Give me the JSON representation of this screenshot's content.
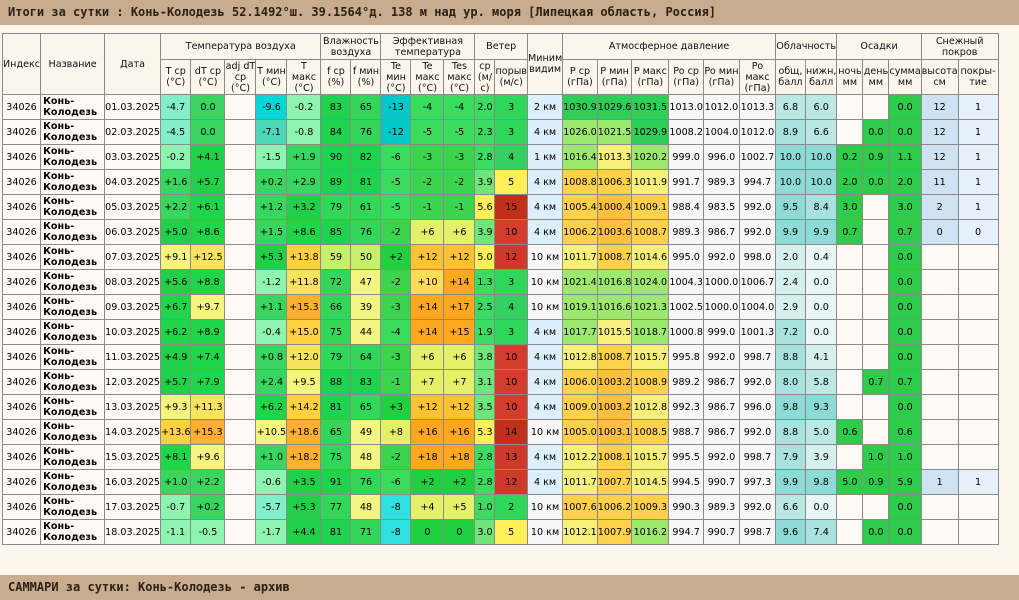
{
  "header": {
    "title": "Итоги за сутки : Конь-Колодезь 52.1492°ш. 39.1564°д. 138 м над ур. моря [Липецкая область, Россия]"
  },
  "footer": {
    "title": "САММАРИ за сутки: Конь-Колодезь - архив"
  },
  "table": {
    "group_headers": {
      "index": "Индекс",
      "name": "Название",
      "date": "Дата",
      "temperature": "Температура воздуха",
      "humidity": "Влажность воздуха",
      "effective": "Эффективная температура",
      "wind": "Ветер",
      "visibility": "Миним видим",
      "pressure": "Атмосферное давление",
      "cloud": "Облачность",
      "precip": "Осадки",
      "snow": "Снежный покров"
    },
    "sub_headers": [
      "T ср (°C)",
      "dT ср (°C)",
      "adj dT ср (°C)",
      "T мин (°C)",
      "T макс (°C)",
      "f ср (%)",
      "f мин (%)",
      "Te мин (°C)",
      "Te макс (°C)",
      "Tes макс (°C)",
      "ср (м/с)",
      "порыв (м/с)",
      "P ср (гПа)",
      "P мин (гПа)",
      "P макс (гПа)",
      "Po ср (гПа)",
      "Po мин (гПа)",
      "Po макс (гПа)",
      "общ, балл",
      "нижн, балл",
      "ночь мм",
      "день мм",
      "сумма мм",
      "высота см",
      "покры- тие"
    ],
    "rows": [
      {
        "index": "34026",
        "name": "Конь-Колодезь",
        "date": "01.03.2025",
        "tavg": "-4.7",
        "dt": "0.0",
        "adj": "",
        "tmin": "-9.6",
        "tmax": "-0.2",
        "fsr": "83",
        "fmin": "65",
        "temin": "-13",
        "temax": "-4",
        "tesmax": "-4",
        "wavg": "2.0",
        "gust": "3",
        "vis": "2 км",
        "psr": "1030.9",
        "pmin": "1029.6",
        "pmax": "1031.5",
        "posr": "1013.0",
        "pomin": "1012.0",
        "pomax": "1013.3",
        "cl_tot": "6.8",
        "cl_low": "6.0",
        "pr_n": "",
        "pr_d": "",
        "pr_s": "0.0",
        "sn_h": "12",
        "sn_c": "1"
      },
      {
        "index": "34026",
        "name": "Конь-Колодезь",
        "date": "02.03.2025",
        "tavg": "-4.5",
        "dt": "0.0",
        "adj": "",
        "tmin": "-7.1",
        "tmax": "-0.8",
        "fsr": "84",
        "fmin": "76",
        "temin": "-12",
        "temax": "-5",
        "tesmax": "-5",
        "wavg": "2.3",
        "gust": "3",
        "vis": "4 км",
        "psr": "1026.0",
        "pmin": "1021.5",
        "pmax": "1029.9",
        "posr": "1008.2",
        "pomin": "1004.0",
        "pomax": "1012.0",
        "cl_tot": "8.9",
        "cl_low": "6.6",
        "pr_n": "",
        "pr_d": "0.0",
        "pr_s": "0.0",
        "sn_h": "12",
        "sn_c": "1"
      },
      {
        "index": "34026",
        "name": "Конь-Колодезь",
        "date": "03.03.2025",
        "tavg": "-0.2",
        "dt": "+4.1",
        "adj": "",
        "tmin": "-1.5",
        "tmax": "+1.9",
        "fsr": "90",
        "fmin": "82",
        "temin": "-6",
        "temax": "-3",
        "tesmax": "-3",
        "wavg": "2.8",
        "gust": "4",
        "vis": "1 км",
        "psr": "1016.4",
        "pmin": "1013.3",
        "pmax": "1020.2",
        "posr": "999.0",
        "pomin": "996.0",
        "pomax": "1002.7",
        "cl_tot": "10.0",
        "cl_low": "10.0",
        "pr_n": "0.2",
        "pr_d": "0.9",
        "pr_s": "1.1",
        "sn_h": "12",
        "sn_c": "1"
      },
      {
        "index": "34026",
        "name": "Конь-Колодезь",
        "date": "04.03.2025",
        "tavg": "+1.6",
        "dt": "+5.7",
        "adj": "",
        "tmin": "+0.2",
        "tmax": "+2.9",
        "fsr": "89",
        "fmin": "81",
        "temin": "-5",
        "temax": "-2",
        "tesmax": "-2",
        "wavg": "3.9",
        "gust": "5",
        "vis": "4 км",
        "psr": "1008.8",
        "pmin": "1006.3",
        "pmax": "1011.9",
        "posr": "991.7",
        "pomin": "989.3",
        "pomax": "994.7",
        "cl_tot": "10.0",
        "cl_low": "10.0",
        "pr_n": "2.0",
        "pr_d": "0.0",
        "pr_s": "2.0",
        "sn_h": "11",
        "sn_c": "1"
      },
      {
        "index": "34026",
        "name": "Конь-Колодезь",
        "date": "05.03.2025",
        "tavg": "+2.2",
        "dt": "+6.1",
        "adj": "",
        "tmin": "+1.2",
        "tmax": "+3.2",
        "fsr": "79",
        "fmin": "61",
        "temin": "-5",
        "temax": "-1",
        "tesmax": "-1",
        "wavg": "5.6",
        "gust": "15",
        "vis": "4 км",
        "psr": "1005.4",
        "pmin": "1000.4",
        "pmax": "1009.1",
        "posr": "988.4",
        "pomin": "983.5",
        "pomax": "992.0",
        "cl_tot": "9.5",
        "cl_low": "8.4",
        "pr_n": "3.0",
        "pr_d": "",
        "pr_s": "3.0",
        "sn_h": "2",
        "sn_c": "1"
      },
      {
        "index": "34026",
        "name": "Конь-Колодезь",
        "date": "06.03.2025",
        "tavg": "+5.0",
        "dt": "+8.6",
        "adj": "",
        "tmin": "+1.5",
        "tmax": "+8.6",
        "fsr": "85",
        "fmin": "76",
        "temin": "-2",
        "temax": "+6",
        "tesmax": "+6",
        "wavg": "3.9",
        "gust": "10",
        "vis": "4 км",
        "psr": "1006.2",
        "pmin": "1003.6",
        "pmax": "1008.7",
        "posr": "989.3",
        "pomin": "986.7",
        "pomax": "992.0",
        "cl_tot": "9.9",
        "cl_low": "9.9",
        "pr_n": "0.7",
        "pr_d": "",
        "pr_s": "0.7",
        "sn_h": "0",
        "sn_c": "0"
      },
      {
        "index": "34026",
        "name": "Конь-Колодезь",
        "date": "07.03.2025",
        "tavg": "+9.1",
        "dt": "+12.5",
        "adj": "",
        "tmin": "+5.3",
        "tmax": "+13.8",
        "fsr": "59",
        "fmin": "50",
        "temin": "+2",
        "temax": "+12",
        "tesmax": "+12",
        "wavg": "5.0",
        "gust": "12",
        "vis": "10 км",
        "psr": "1011.7",
        "pmin": "1008.7",
        "pmax": "1014.6",
        "posr": "995.0",
        "pomin": "992.0",
        "pomax": "998.0",
        "cl_tot": "2.0",
        "cl_low": "0.4",
        "pr_n": "",
        "pr_d": "",
        "pr_s": "0.0",
        "sn_h": "",
        "sn_c": ""
      },
      {
        "index": "34026",
        "name": "Конь-Колодезь",
        "date": "08.03.2025",
        "tavg": "+5.6",
        "dt": "+8.8",
        "adj": "",
        "tmin": "-1.2",
        "tmax": "+11.8",
        "fsr": "72",
        "fmin": "47",
        "temin": "-2",
        "temax": "+10",
        "tesmax": "+14",
        "wavg": "1.3",
        "gust": "3",
        "vis": "10 км",
        "psr": "1021.4",
        "pmin": "1016.8",
        "pmax": "1024.0",
        "posr": "1004.3",
        "pomin": "1000.0",
        "pomax": "1006.7",
        "cl_tot": "2.4",
        "cl_low": "0.0",
        "pr_n": "",
        "pr_d": "",
        "pr_s": "0.0",
        "sn_h": "",
        "sn_c": ""
      },
      {
        "index": "34026",
        "name": "Конь-Колодезь",
        "date": "09.03.2025",
        "tavg": "+6.7",
        "dt": "+9.7",
        "adj": "",
        "tmin": "+1.1",
        "tmax": "+15.3",
        "fsr": "66",
        "fmin": "39",
        "temin": "-3",
        "temax": "+14",
        "tesmax": "+17",
        "wavg": "2.5",
        "gust": "4",
        "vis": "10 км",
        "psr": "1019.1",
        "pmin": "1016.6",
        "pmax": "1021.3",
        "posr": "1002.5",
        "pomin": "1000.0",
        "pomax": "1004.0",
        "cl_tot": "2.9",
        "cl_low": "0.0",
        "pr_n": "",
        "pr_d": "",
        "pr_s": "0.0",
        "sn_h": "",
        "sn_c": ""
      },
      {
        "index": "34026",
        "name": "Конь-Колодезь",
        "date": "10.03.2025",
        "tavg": "+6.2",
        "dt": "+8.9",
        "adj": "",
        "tmin": "-0.4",
        "tmax": "+15.0",
        "fsr": "75",
        "fmin": "44",
        "temin": "-4",
        "temax": "+14",
        "tesmax": "+15",
        "wavg": "1.9",
        "gust": "3",
        "vis": "4 км",
        "psr": "1017.7",
        "pmin": "1015.5",
        "pmax": "1018.7",
        "posr": "1000.8",
        "pomin": "999.0",
        "pomax": "1001.3",
        "cl_tot": "7.2",
        "cl_low": "0.0",
        "pr_n": "",
        "pr_d": "",
        "pr_s": "0.0",
        "sn_h": "",
        "sn_c": ""
      },
      {
        "index": "34026",
        "name": "Конь-Колодезь",
        "date": "11.03.2025",
        "tavg": "+4.9",
        "dt": "+7.4",
        "adj": "",
        "tmin": "+0.8",
        "tmax": "+12.0",
        "fsr": "79",
        "fmin": "64",
        "temin": "-3",
        "temax": "+6",
        "tesmax": "+6",
        "wavg": "3.8",
        "gust": "10",
        "vis": "4 км",
        "psr": "1012.8",
        "pmin": "1008.7",
        "pmax": "1015.7",
        "posr": "995.8",
        "pomin": "992.0",
        "pomax": "998.7",
        "cl_tot": "8.8",
        "cl_low": "4.1",
        "pr_n": "",
        "pr_d": "",
        "pr_s": "0.0",
        "sn_h": "",
        "sn_c": ""
      },
      {
        "index": "34026",
        "name": "Конь-Колодезь",
        "date": "12.03.2025",
        "tavg": "+5.7",
        "dt": "+7.9",
        "adj": "",
        "tmin": "+2.4",
        "tmax": "+9.5",
        "fsr": "88",
        "fmin": "83",
        "temin": "-1",
        "temax": "+7",
        "tesmax": "+7",
        "wavg": "3.1",
        "gust": "10",
        "vis": "4 км",
        "psr": "1006.0",
        "pmin": "1003.2",
        "pmax": "1008.9",
        "posr": "989.2",
        "pomin": "986.7",
        "pomax": "992.0",
        "cl_tot": "8.0",
        "cl_low": "5.8",
        "pr_n": "",
        "pr_d": "0.7",
        "pr_s": "0.7",
        "sn_h": "",
        "sn_c": ""
      },
      {
        "index": "34026",
        "name": "Конь-Колодезь",
        "date": "13.03.2025",
        "tavg": "+9.3",
        "dt": "+11.3",
        "adj": "",
        "tmin": "+6.2",
        "tmax": "+14.2",
        "fsr": "81",
        "fmin": "65",
        "temin": "+3",
        "temax": "+12",
        "tesmax": "+12",
        "wavg": "3.5",
        "gust": "10",
        "vis": "4 км",
        "psr": "1009.0",
        "pmin": "1003.2",
        "pmax": "1012.8",
        "posr": "992.3",
        "pomin": "986.7",
        "pomax": "996.0",
        "cl_tot": "9.8",
        "cl_low": "9.3",
        "pr_n": "",
        "pr_d": "",
        "pr_s": "0.0",
        "sn_h": "",
        "sn_c": ""
      },
      {
        "index": "34026",
        "name": "Конь-Колодезь",
        "date": "14.03.2025",
        "tavg": "+13.6",
        "dt": "+15.3",
        "adj": "",
        "tmin": "+10.5",
        "tmax": "+18.6",
        "fsr": "65",
        "fmin": "49",
        "temin": "+8",
        "temax": "+16",
        "tesmax": "+16",
        "wavg": "5.3",
        "gust": "14",
        "vis": "10 км",
        "psr": "1005.0",
        "pmin": "1003.1",
        "pmax": "1008.5",
        "posr": "988.7",
        "pomin": "986.7",
        "pomax": "992.0",
        "cl_tot": "8.8",
        "cl_low": "5.0",
        "pr_n": "0.6",
        "pr_d": "",
        "pr_s": "0.6",
        "sn_h": "",
        "sn_c": ""
      },
      {
        "index": "34026",
        "name": "Конь-Колодезь",
        "date": "15.03.2025",
        "tavg": "+8.1",
        "dt": "+9.6",
        "adj": "",
        "tmin": "+1.0",
        "tmax": "+18.2",
        "fsr": "75",
        "fmin": "48",
        "temin": "-2",
        "temax": "+18",
        "tesmax": "+18",
        "wavg": "2.8",
        "gust": "13",
        "vis": "4 км",
        "psr": "1012.2",
        "pmin": "1008.1",
        "pmax": "1015.7",
        "posr": "995.5",
        "pomin": "992.0",
        "pomax": "998.7",
        "cl_tot": "7.9",
        "cl_low": "3.9",
        "pr_n": "",
        "pr_d": "1.0",
        "pr_s": "1.0",
        "sn_h": "",
        "sn_c": ""
      },
      {
        "index": "34026",
        "name": "Конь-Колодезь",
        "date": "16.03.2025",
        "tavg": "+1.0",
        "dt": "+2.2",
        "adj": "",
        "tmin": "-0.6",
        "tmax": "+3.5",
        "fsr": "91",
        "fmin": "76",
        "temin": "-6",
        "temax": "+2",
        "tesmax": "+2",
        "wavg": "2.8",
        "gust": "12",
        "vis": "4 км",
        "psr": "1011.7",
        "pmin": "1007.7",
        "pmax": "1014.5",
        "posr": "994.5",
        "pomin": "990.7",
        "pomax": "997.3",
        "cl_tot": "9.9",
        "cl_low": "9.8",
        "pr_n": "5.0",
        "pr_d": "0.9",
        "pr_s": "5.9",
        "sn_h": "1",
        "sn_c": "1"
      },
      {
        "index": "34026",
        "name": "Конь-Колодезь",
        "date": "17.03.2025",
        "tavg": "-0.7",
        "dt": "+0.2",
        "adj": "",
        "tmin": "-5.7",
        "tmax": "+5.3",
        "fsr": "77",
        "fmin": "48",
        "temin": "-8",
        "temax": "+4",
        "tesmax": "+5",
        "wavg": "1.0",
        "gust": "2",
        "vis": "10 км",
        "psr": "1007.6",
        "pmin": "1006.2",
        "pmax": "1009.3",
        "posr": "990.3",
        "pomin": "989.3",
        "pomax": "992.0",
        "cl_tot": "6.6",
        "cl_low": "0.0",
        "pr_n": "",
        "pr_d": "",
        "pr_s": "0.0",
        "sn_h": "",
        "sn_c": ""
      },
      {
        "index": "34026",
        "name": "Конь-Колодезь",
        "date": "18.03.2025",
        "tavg": "-1.1",
        "dt": "-0.5",
        "adj": "",
        "tmin": "-1.7",
        "tmax": "+4.4",
        "fsr": "81",
        "fmin": "71",
        "temin": "-8",
        "temax": "0",
        "tesmax": "0",
        "wavg": "3.0",
        "gust": "5",
        "vis": "10 км",
        "psr": "1012.1",
        "pmin": "1007.9",
        "pmax": "1016.2",
        "posr": "994.7",
        "pomin": "990.7",
        "pomax": "998.7",
        "cl_tot": "9.6",
        "cl_low": "7.4",
        "pr_n": "",
        "pr_d": "0.0",
        "pr_s": "0.0",
        "sn_h": "",
        "sn_c": ""
      }
    ]
  }
}
